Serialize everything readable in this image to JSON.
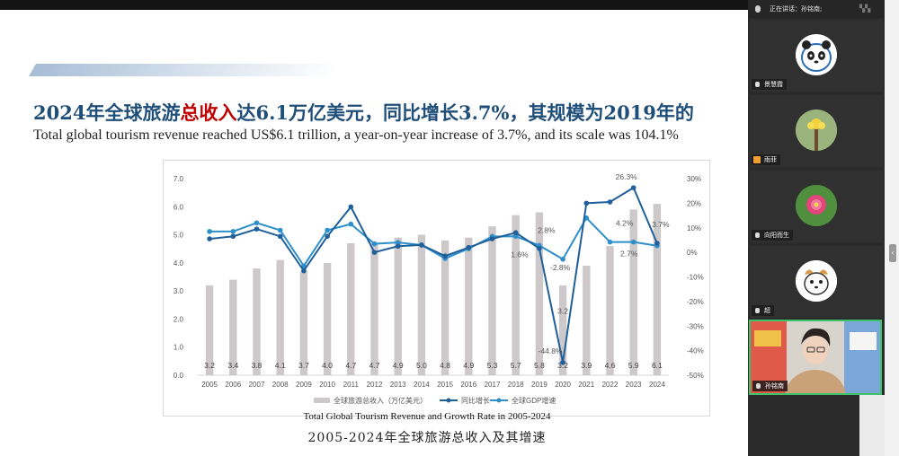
{
  "slide": {
    "heading_pre": "2024年全球旅游",
    "heading_highlight": "总收入",
    "heading_post": "达6.1万亿美元，同比增长3.7%，其规模为2019年的",
    "subheading": "Total global tourism revenue reached US$6.1 trillion, a year-on-year increase of 3.7%, and its scale was 104.1%",
    "caption_en": "Total Global Tourism Revenue and Growth Rate   in 2005-2024",
    "caption_cn": "2005-2024年全球旅游总收入及其增速"
  },
  "chart_data": {
    "type": "bar",
    "categories": [
      "2005",
      "2006",
      "2007",
      "2008",
      "2009",
      "2010",
      "2011",
      "2012",
      "2013",
      "2014",
      "2015",
      "2016",
      "2017",
      "2018",
      "2019",
      "2020",
      "2021",
      "2022",
      "2023",
      "2024"
    ],
    "series": [
      {
        "name": "全球旅游总收入（万亿美元）",
        "type": "bar",
        "axis": "left",
        "values": [
          3.2,
          3.4,
          3.8,
          4.1,
          3.7,
          4.0,
          4.7,
          4.7,
          4.9,
          5.0,
          4.8,
          4.9,
          5.3,
          5.7,
          5.8,
          3.2,
          3.9,
          4.6,
          5.9,
          6.1
        ]
      },
      {
        "name": "同比增长",
        "type": "line",
        "axis": "right",
        "values": [
          5.5,
          6.5,
          9.5,
          6.5,
          -7.5,
          6.5,
          18.5,
          0,
          2.5,
          3.0,
          -1.5,
          2.0,
          5.5,
          8.0,
          1.6,
          -44.8,
          20.0,
          20.5,
          26.3,
          3.7
        ]
      },
      {
        "name": "全球GDP增速",
        "type": "line",
        "axis": "right",
        "values": [
          8.5,
          8.5,
          12.0,
          9.0,
          -5.5,
          9.0,
          11.5,
          3.5,
          4.0,
          3.0,
          -2.5,
          1.5,
          6.5,
          6.5,
          2.8,
          -2.8,
          14.0,
          4.2,
          4.2,
          2.7
        ]
      }
    ],
    "left_axis": {
      "min": 0.0,
      "max": 7.0,
      "ticks": [
        "0.0",
        "1.0",
        "2.0",
        "3.0",
        "4.0",
        "5.0",
        "6.0",
        "7.0"
      ]
    },
    "right_axis": {
      "min": -50,
      "max": 30,
      "ticks": [
        "-50%",
        "-40%",
        "-30%",
        "-20%",
        "-10%",
        "0%",
        "10%",
        "20%",
        "30%"
      ]
    },
    "annotations": [
      "26.3%",
      "2.8%",
      "1.6%",
      "-2.8%",
      "-44.8%",
      "3.2",
      "4.2%",
      "3.7%",
      "2.7%"
    ],
    "legend_position": "bottom",
    "grid": false,
    "colors": {
      "bar": "#cdc8ca",
      "growth": "#1f5f9a",
      "gdp": "#2e8fcb"
    }
  },
  "meeting": {
    "header_text": "正在讲话：孙铭南;",
    "participants": [
      {
        "name": "景慧霞",
        "avatar": "panda"
      },
      {
        "name": "雨菲",
        "avatar": "flower-yellow",
        "host": true
      },
      {
        "name": "向阳而生",
        "avatar": "flower-pink"
      },
      {
        "name": "超",
        "avatar": "cartoon-dog"
      }
    ],
    "speaker": {
      "name": "孙铭南"
    }
  }
}
